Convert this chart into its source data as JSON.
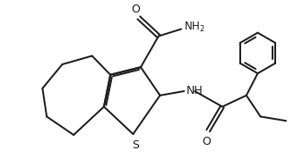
{
  "background_color": "#ffffff",
  "line_color": "#1a1a1a",
  "line_width": 1.4,
  "font_size": 8.5,
  "figsize": [
    3.38,
    1.88
  ],
  "dpi": 100,
  "xlim": [
    0,
    10
  ],
  "ylim": [
    0,
    5.9
  ]
}
